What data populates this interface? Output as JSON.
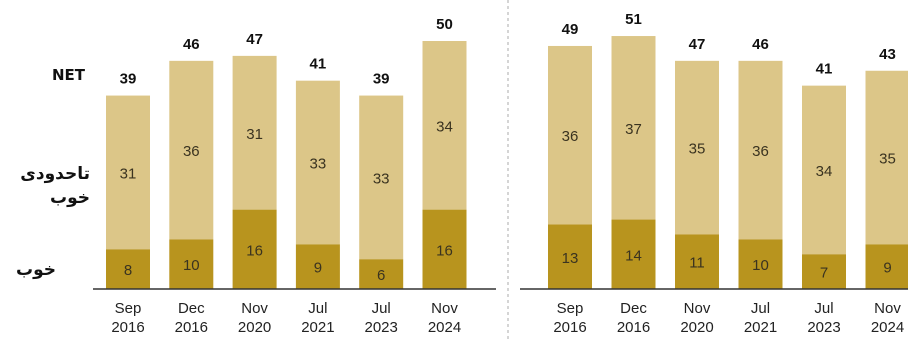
{
  "row_labels": {
    "net": "NET",
    "somewhat_good": "تاحدودی خوب",
    "good": "خوب"
  },
  "colors": {
    "good": "#b8941e",
    "somewhat_good": "#dcc688",
    "text": "#3a3320",
    "net_text": "#111111",
    "divider": "#b9b9b9",
    "axis": "#333333"
  },
  "chart_data": [
    {
      "type": "bar",
      "stacked": true,
      "categories": [
        "Sep\n2016",
        "Dec\n2016",
        "Nov\n2020",
        "Jul\n2021",
        "Jul\n2023",
        "Nov\n2024"
      ],
      "series": [
        {
          "name": "خوب",
          "values": [
            8,
            10,
            16,
            9,
            6,
            16
          ]
        },
        {
          "name": "تاحدودی خوب",
          "values": [
            31,
            36,
            31,
            33,
            33,
            34
          ]
        }
      ],
      "net": [
        39,
        46,
        47,
        41,
        39,
        50
      ],
      "ylim": [
        0,
        55
      ]
    },
    {
      "type": "bar",
      "stacked": true,
      "categories": [
        "Sep\n2016",
        "Dec\n2016",
        "Nov\n2020",
        "Jul\n2021",
        "Jul\n2023",
        "Nov\n2024"
      ],
      "series": [
        {
          "name": "خوب",
          "values": [
            13,
            14,
            11,
            10,
            7,
            9
          ]
        },
        {
          "name": "تاحدودی خوب",
          "values": [
            36,
            37,
            35,
            36,
            34,
            35
          ]
        }
      ],
      "net": [
        49,
        51,
        47,
        46,
        41,
        43
      ],
      "ylim": [
        0,
        55
      ]
    }
  ]
}
